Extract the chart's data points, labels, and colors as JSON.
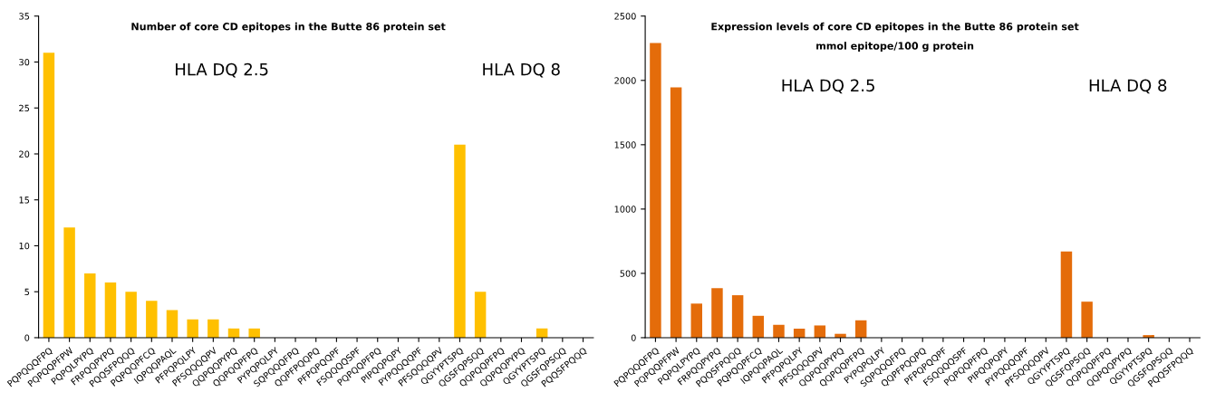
{
  "chart_data": [
    {
      "type": "bar",
      "title": "Number of core CD epitopes in the Butte 86 protein set",
      "annotations": [
        "HLA DQ 2.5",
        "HLA DQ 8"
      ],
      "categories": [
        "PQPQQQFPQ",
        "PQPQQPFPW",
        "PQPQLPYPQ",
        "FRPQQPYPQ",
        "PQQSFPQQQ",
        "PQPQQPFCQ",
        "IQPQQPAQL",
        "PFPQPQLPY",
        "PFSQQQQPV",
        "QQPQQPYPQ",
        "QQPQQPFPQ",
        "PYPQPQLPY",
        "SQPQQQFPQ",
        "QQPFPQQPQ",
        "PFPQPQQPF",
        "FSQQQQSPF",
        "PQPQQPFPQ",
        "PIPQQPQPY",
        "PYPQQQQPF",
        "PFSQQQQPV",
        "QGYYPTSPQ",
        "QGSFQPSQQ",
        "QQPQQPFPQ",
        "QQPQQPYPQ",
        "QGYYPTSPQ",
        "QGSFQPSQQ",
        "PQQSFPQQQ"
      ],
      "values": [
        31,
        12,
        7,
        6,
        5,
        4,
        3,
        2,
        2,
        1,
        1,
        0,
        0,
        0,
        0,
        0,
        0,
        0,
        0,
        0,
        21,
        5,
        0,
        0,
        1,
        0,
        0
      ],
      "color": "#ffc000",
      "ylim": [
        0,
        35
      ],
      "yticks": [
        0,
        5,
        10,
        15,
        20,
        25,
        30,
        35
      ],
      "grid": false,
      "legend": false
    },
    {
      "type": "bar",
      "title": "Expression levels of core CD epitopes in the Butte 86 protein set",
      "subtitle": "mmol epitope/100 g protein",
      "annotations": [
        "HLA DQ 2.5",
        "HLA DQ 8"
      ],
      "categories": [
        "PQPQQQFPQ",
        "PQPQQPFPW",
        "PQPQLPYPQ",
        "FRPQQPYPQ",
        "PQQSFPQQQ",
        "PQPQQPFCQ",
        "IQPQQPAQL",
        "PFPQPQLPY",
        "PFSQQQQPV",
        "QQPQQPYPQ",
        "QQPQQPFPQ",
        "PYPQPQLPY",
        "SQPQQQFPQ",
        "QQPFPQQPQ",
        "PFPQPQQPF",
        "FSQQQQSPF",
        "PQPQQPFPQ",
        "PIPQQPQPY",
        "PYPQQQQPF",
        "PFSQQQQPV",
        "QGYYPTSPQ",
        "QGSFQPSQQ",
        "QQPQQPFPQ",
        "QQPQQPYPQ",
        "QGYYPTSPQ",
        "QGSFQPSQQ",
        "PQQSFPQQQ"
      ],
      "values": [
        2290,
        1945,
        265,
        385,
        330,
        170,
        100,
        70,
        95,
        30,
        135,
        0,
        0,
        0,
        0,
        0,
        0,
        0,
        0,
        0,
        670,
        280,
        0,
        0,
        20,
        0,
        0
      ],
      "color": "#e46c0a",
      "ylim": [
        0,
        2500
      ],
      "yticks": [
        0,
        500,
        1000,
        1500,
        2000,
        2500
      ],
      "grid": false,
      "legend": false
    }
  ]
}
